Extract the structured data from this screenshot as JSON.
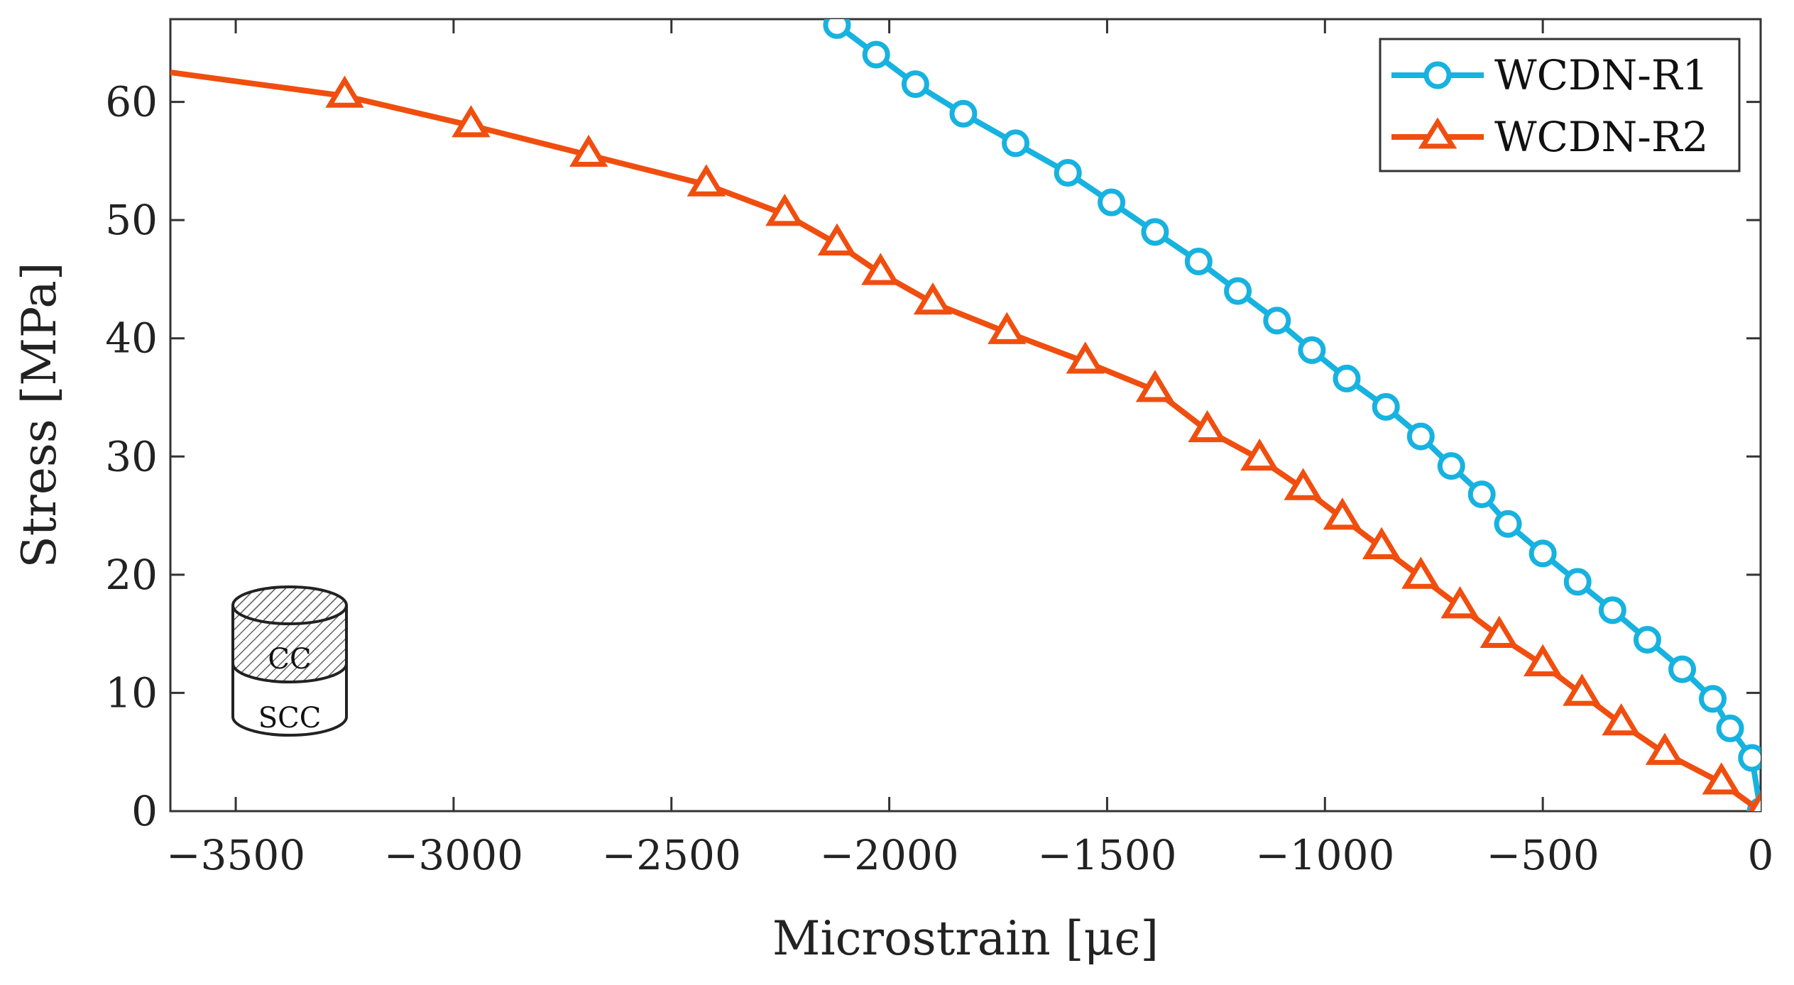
{
  "chart_data": {
    "type": "line",
    "title": "",
    "xlabel": "Microstrain [μϵ]",
    "ylabel": "Stress [MPa]",
    "xlim": [
      -3650,
      0
    ],
    "ylim": [
      0,
      67
    ],
    "xticks": [
      -3500,
      -3000,
      -2500,
      -2000,
      -1500,
      -1000,
      -500,
      0
    ],
    "xtick_labels": [
      "−3500",
      "−3000",
      "−2500",
      "−2000",
      "−1500",
      "−1000",
      "−500",
      "0"
    ],
    "yticks": [
      0,
      10,
      20,
      30,
      40,
      50,
      60
    ],
    "ytick_labels": [
      "0",
      "10",
      "20",
      "30",
      "40",
      "50",
      "60"
    ],
    "grid": false,
    "legend_position": "top-right",
    "series": [
      {
        "name": "WCDN-R1",
        "color": "#17b2e0",
        "marker": "circle",
        "x": [
          -2120,
          -2030,
          -1940,
          -1830,
          -1710,
          -1590,
          -1490,
          -1390,
          -1290,
          -1200,
          -1110,
          -1030,
          -950,
          -860,
          -780,
          -710,
          -640,
          -580,
          -500,
          -420,
          -340,
          -260,
          -180,
          -110,
          -70,
          -20,
          0
        ],
        "y": [
          66.5,
          64,
          61.5,
          59,
          56.5,
          54,
          51.5,
          49,
          46.5,
          44,
          41.5,
          39,
          36.6,
          34.2,
          31.7,
          29.2,
          26.8,
          24.3,
          21.8,
          19.4,
          17,
          14.5,
          12,
          9.5,
          7,
          4.5,
          0
        ]
      },
      {
        "name": "WCDN-R2",
        "color": "#f04e0f",
        "marker": "triangle",
        "x": [
          -3650,
          -3250,
          -2960,
          -2690,
          -2420,
          -2240,
          -2120,
          -2020,
          -1900,
          -1730,
          -1550,
          -1390,
          -1270,
          -1150,
          -1050,
          -960,
          -870,
          -780,
          -690,
          -600,
          -500,
          -410,
          -320,
          -220,
          -90,
          0
        ],
        "y": [
          62.5,
          60.5,
          58,
          55.5,
          53,
          50.5,
          48,
          45.5,
          43,
          40.5,
          38,
          35.6,
          32.2,
          29.8,
          27.3,
          24.8,
          22.3,
          19.8,
          17.3,
          14.8,
          12.4,
          9.9,
          7.4,
          4.9,
          2.4,
          0
        ]
      }
    ],
    "inset_icon": {
      "top_label": "CC",
      "bottom_label": "SCC"
    }
  }
}
